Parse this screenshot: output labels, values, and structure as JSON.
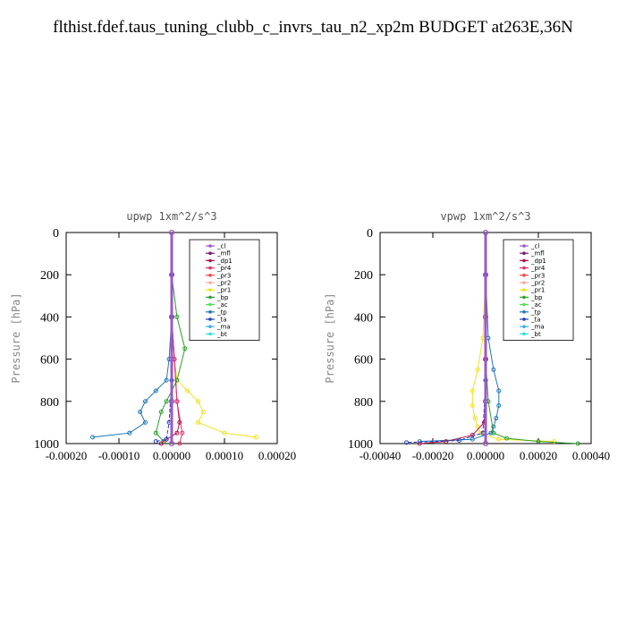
{
  "page": {
    "title": "flthist.fdef.taus_tuning_clubb_c_invrs_tau_n2_xp2m  BUDGET at263E,36N"
  },
  "colors": {
    "_cl": "#9b59c6",
    "_mfl": "#7a1a6e",
    "_dp1": "#b0124a",
    "_pr4": "#e0306a",
    "_pr3": "#f04848",
    "_pr2": "#f7a8a8",
    "_pr1": "#f0e020",
    "_bp": "#2aa02a",
    "_ac": "#50e050",
    "_tp": "#1f77b4",
    "_ta": "#2040c0",
    "_ma": "#40b0e0",
    "_bt": "#30e0e0"
  },
  "chart_data": [
    {
      "type": "line",
      "title": "upwp   1xm^2/s^3",
      "ylabel": "Pressure [hPa]",
      "xlim": [
        -0.0002,
        0.0002
      ],
      "ylim": [
        0,
        1000
      ],
      "y_inverted": true,
      "xticks": [
        "-0.00020",
        "-0.00010",
        "0.00000",
        "0.00010",
        "0.00020"
      ],
      "yticks": [
        "0",
        "200",
        "400",
        "600",
        "800",
        "1000"
      ],
      "legend": [
        "_cl",
        "_mfl",
        "_dp1",
        "_pr4",
        "_pr3",
        "_pr2",
        "_pr1",
        "_bp",
        "_ac",
        "_tp",
        "_ta",
        "_ma",
        "_bt"
      ],
      "legend_position": "top-right",
      "series": [
        {
          "name": "_tp",
          "x": [
            0,
            0,
            -5e-06,
            -1e-05,
            -3e-05,
            -5e-05,
            -6e-05,
            -5e-05,
            -8e-05,
            -0.00015
          ],
          "y": [
            200,
            400,
            600,
            700,
            750,
            800,
            850,
            900,
            950,
            970
          ]
        },
        {
          "name": "_pr1",
          "x": [
            0,
            0,
            5e-06,
            1e-05,
            3e-05,
            5e-05,
            6e-05,
            5e-05,
            0.0001,
            0.00016
          ],
          "y": [
            200,
            400,
            600,
            700,
            750,
            800,
            850,
            900,
            950,
            970
          ]
        },
        {
          "name": "_bp",
          "x": [
            0,
            1e-05,
            2.5e-05,
            1e-05,
            -1e-05,
            -2e-05,
            -3e-05,
            -1.5e-05
          ],
          "y": [
            200,
            400,
            550,
            700,
            800,
            850,
            950,
            990
          ]
        },
        {
          "name": "_dp1",
          "x": [
            0,
            0,
            5e-06,
            1e-05,
            1.5e-05,
            1e-05,
            -1e-05,
            -2e-05
          ],
          "y": [
            200,
            400,
            600,
            800,
            900,
            950,
            980,
            1000
          ]
        },
        {
          "name": "_pr4",
          "x": [
            0,
            0,
            5e-06,
            1e-05,
            2e-05,
            1.5e-05
          ],
          "y": [
            200,
            400,
            600,
            800,
            950,
            1000
          ]
        },
        {
          "name": "_ta",
          "x": [
            0,
            0,
            0,
            -5e-06,
            -1e-05,
            -3e-05
          ],
          "y": [
            200,
            400,
            700,
            900,
            980,
            990
          ]
        },
        {
          "name": "_mfl",
          "x": [
            0,
            0,
            0,
            0,
            0,
            0
          ],
          "y": [
            0,
            200,
            400,
            600,
            800,
            1000
          ]
        },
        {
          "name": "_cl",
          "x": [
            0,
            0,
            0,
            0,
            0,
            0
          ],
          "y": [
            0,
            200,
            400,
            600,
            800,
            1000
          ]
        }
      ]
    },
    {
      "type": "line",
      "title": "vpwp   1xm^2/s^3",
      "ylabel": "Pressure [hPa]",
      "xlim": [
        -0.0004,
        0.0004
      ],
      "ylim": [
        0,
        1000
      ],
      "y_inverted": true,
      "xticks": [
        "-0.00040",
        "-0.00020",
        "0.00000",
        "0.00020",
        "0.00040"
      ],
      "yticks": [
        "0",
        "200",
        "400",
        "600",
        "800",
        "1000"
      ],
      "legend": [
        "_cl",
        "_mfl",
        "_dp1",
        "_pr4",
        "_pr3",
        "_pr2",
        "_pr1",
        "_bp",
        "_ac",
        "_tp",
        "_ta",
        "_ma",
        "_bt"
      ],
      "legend_position": "top-right",
      "series": [
        {
          "name": "_tp",
          "x": [
            0,
            1e-05,
            3e-05,
            5e-05,
            5e-05,
            4e-05,
            3e-05,
            2e-05,
            -5e-05,
            -0.00025
          ],
          "y": [
            200,
            500,
            650,
            750,
            820,
            880,
            920,
            950,
            980,
            990
          ]
        },
        {
          "name": "_pr1",
          "x": [
            0,
            -1e-05,
            -3e-05,
            -5e-05,
            -5e-05,
            -4e-05,
            -3e-05,
            -2e-05,
            5e-05,
            0.00026
          ],
          "y": [
            200,
            500,
            650,
            750,
            820,
            880,
            920,
            950,
            980,
            990
          ]
        },
        {
          "name": "_bp",
          "x": [
            0,
            0,
            1e-05,
            3e-05,
            8e-05,
            0.0002,
            0.00035
          ],
          "y": [
            200,
            600,
            800,
            950,
            975,
            990,
            1000
          ]
        },
        {
          "name": "_dp1",
          "x": [
            0,
            0,
            -5e-06,
            -5e-05,
            -0.00015,
            -0.00025
          ],
          "y": [
            200,
            600,
            900,
            960,
            990,
            1000
          ]
        },
        {
          "name": "_ta",
          "x": [
            0,
            0,
            -1e-05,
            -0.0001,
            -0.0003
          ],
          "y": [
            200,
            700,
            950,
            985,
            995
          ]
        },
        {
          "name": "_mfl",
          "x": [
            0,
            0,
            0,
            0,
            0,
            0
          ],
          "y": [
            0,
            200,
            400,
            600,
            800,
            1000
          ]
        },
        {
          "name": "_cl",
          "x": [
            0,
            0,
            0,
            0,
            0,
            0
          ],
          "y": [
            0,
            200,
            400,
            600,
            800,
            1000
          ]
        }
      ]
    }
  ]
}
